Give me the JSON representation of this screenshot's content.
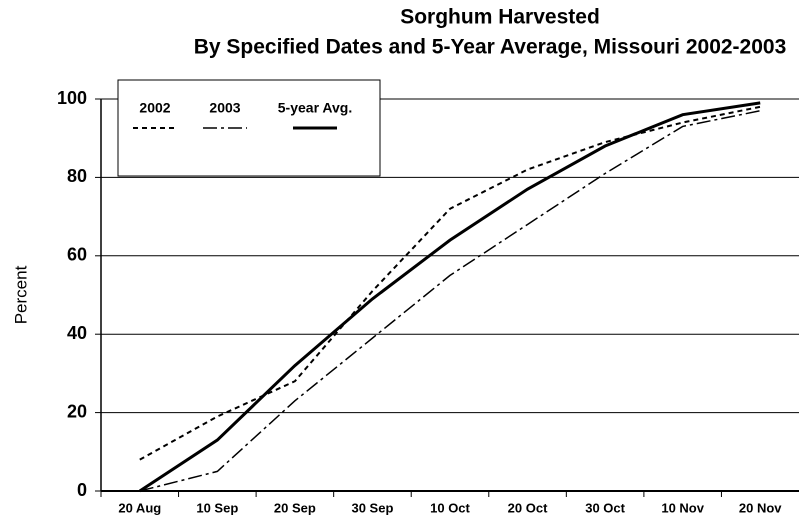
{
  "chart_data": {
    "type": "line",
    "title": "Sorghum Harvested",
    "subtitle": "By Specified Dates and 5-Year Average, Missouri 2002-2003",
    "y_label": "Percent",
    "categories": [
      "20 Aug",
      "10 Sep",
      "20 Sep",
      "30 Sep",
      "10 Oct",
      "20 Oct",
      "30 Oct",
      "10 Nov",
      "20 Nov"
    ],
    "series": [
      {
        "name": "2002",
        "color": "#000000",
        "dash": "5 4",
        "width": 2,
        "values": [
          8,
          19,
          28,
          51,
          72,
          82,
          89,
          94,
          98
        ]
      },
      {
        "name": "2003",
        "color": "#000000",
        "dash": "14 4 3 4",
        "width": 1.5,
        "values": [
          0,
          5,
          23,
          39,
          55,
          68,
          81,
          93,
          97
        ]
      },
      {
        "name": "5-year Avg.",
        "color": "#000000",
        "dash": "none",
        "width": 3,
        "values": [
          0,
          13,
          32,
          49,
          64,
          77,
          88,
          96,
          99
        ]
      }
    ],
    "ylim": [
      0,
      100
    ],
    "yticks": [
      0,
      20,
      40,
      60,
      80,
      100
    ],
    "grid": true
  }
}
